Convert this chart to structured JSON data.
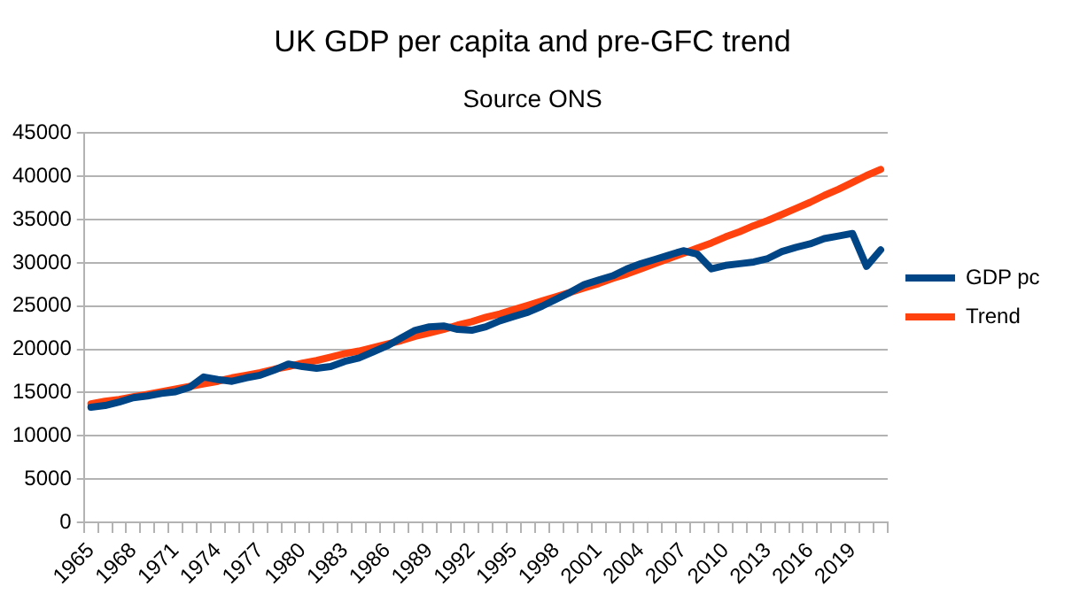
{
  "chart_data": {
    "type": "line",
    "title": "UK GDP per capita and pre-GFC trend",
    "subtitle": "Source ONS",
    "categories": [
      "1965",
      null,
      null,
      "1968",
      null,
      null,
      "1971",
      null,
      null,
      "1974",
      null,
      null,
      "1977",
      null,
      null,
      "1980",
      null,
      null,
      "1983",
      null,
      null,
      "1986",
      null,
      null,
      "1989",
      null,
      null,
      "1992",
      null,
      null,
      "1995",
      null,
      null,
      "1998",
      null,
      null,
      "2001",
      null,
      null,
      "2004",
      null,
      null,
      "2007",
      null,
      null,
      "2010",
      null,
      null,
      "2013",
      null,
      null,
      "2016",
      null,
      null,
      "2019",
      null,
      null
    ],
    "series": [
      {
        "name": "GDP pc",
        "color": "#004586",
        "values": [
          13300,
          13500,
          13900,
          14400,
          14600,
          14900,
          15100,
          15600,
          16800,
          16500,
          16300,
          16700,
          17000,
          17600,
          18300,
          18000,
          17800,
          18000,
          18600,
          19000,
          19700,
          20400,
          21300,
          22200,
          22600,
          22700,
          22300,
          22200,
          22600,
          23300,
          23800,
          24300,
          25000,
          25800,
          26600,
          27500,
          28000,
          28500,
          29300,
          29900,
          30400,
          30900,
          31400,
          31000,
          29300,
          29700,
          29900,
          30100,
          30500,
          31300,
          31800,
          32200,
          32800,
          33100,
          33400,
          29600,
          31500
        ]
      },
      {
        "name": "Trend",
        "color": "#ff420e",
        "values": [
          13700,
          14000,
          14200,
          14500,
          14800,
          15100,
          15400,
          15700,
          16000,
          16300,
          16700,
          17000,
          17300,
          17700,
          18000,
          18400,
          18700,
          19100,
          19500,
          19800,
          20200,
          20600,
          21000,
          21500,
          21900,
          22300,
          22800,
          23200,
          23700,
          24100,
          24600,
          25100,
          25600,
          26100,
          26600,
          27100,
          27600,
          28200,
          28700,
          29300,
          29900,
          30500,
          31100,
          31700,
          32300,
          33000,
          33600,
          34300,
          34900,
          35600,
          36300,
          37000,
          37800,
          38500,
          39300,
          40100,
          40800
        ]
      }
    ],
    "ylim": [
      0,
      45000
    ],
    "yticks": [
      0,
      5000,
      10000,
      15000,
      20000,
      25000,
      30000,
      35000,
      40000,
      45000
    ],
    "grid": "y",
    "legend": "right",
    "marker": "none",
    "line_style": "solid"
  }
}
